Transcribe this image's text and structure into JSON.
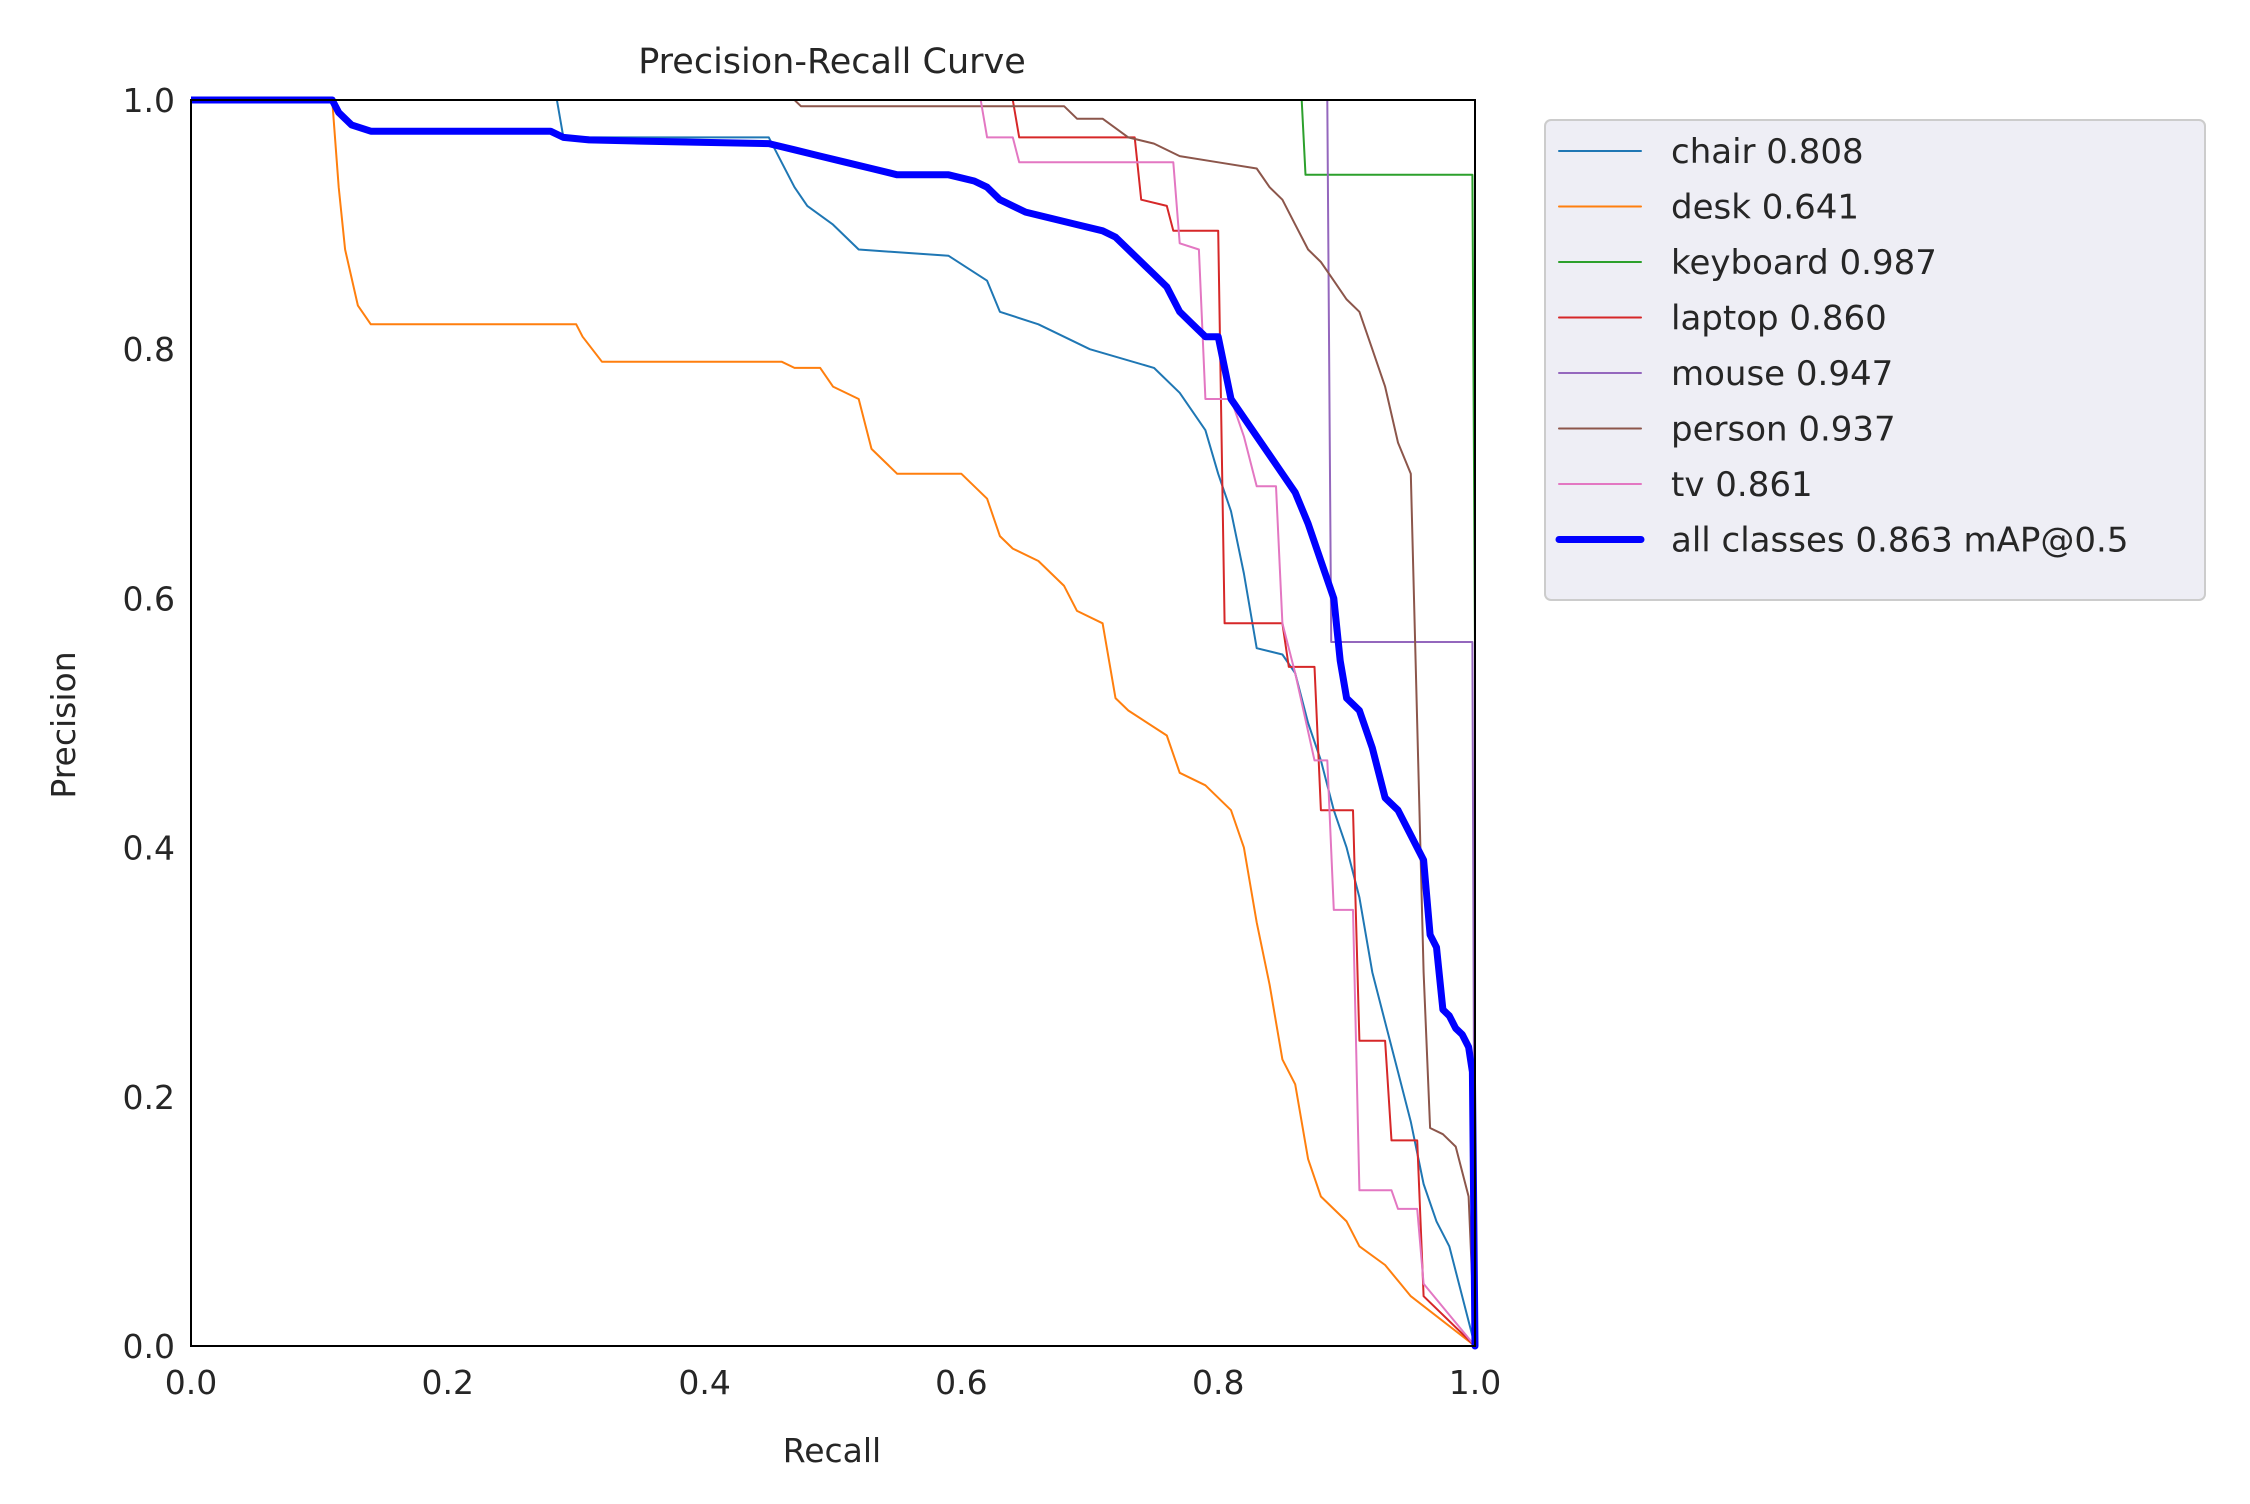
{
  "chart_data": {
    "type": "line",
    "title": "Precision-Recall Curve",
    "xlabel": "Recall",
    "ylabel": "Precision",
    "xlim": [
      0,
      1
    ],
    "ylim": [
      0,
      1
    ],
    "xticks": [
      "0.0",
      "0.2",
      "0.4",
      "0.6",
      "0.8",
      "1.0"
    ],
    "yticks": [
      "0.0",
      "0.2",
      "0.4",
      "0.6",
      "0.8",
      "1.0"
    ],
    "grid": false,
    "legend_position": "outside-top-right",
    "series": [
      {
        "name": "chair",
        "label": "chair 0.808",
        "color": "#1f77b4",
        "width": "thin",
        "points": [
          [
            0,
            1
          ],
          [
            0.285,
            1
          ],
          [
            0.29,
            0.97
          ],
          [
            0.45,
            0.97
          ],
          [
            0.46,
            0.95
          ],
          [
            0.47,
            0.93
          ],
          [
            0.48,
            0.915
          ],
          [
            0.5,
            0.9
          ],
          [
            0.52,
            0.88
          ],
          [
            0.59,
            0.875
          ],
          [
            0.62,
            0.855
          ],
          [
            0.63,
            0.83
          ],
          [
            0.66,
            0.82
          ],
          [
            0.7,
            0.8
          ],
          [
            0.75,
            0.785
          ],
          [
            0.77,
            0.765
          ],
          [
            0.79,
            0.735
          ],
          [
            0.8,
            0.7
          ],
          [
            0.81,
            0.67
          ],
          [
            0.82,
            0.62
          ],
          [
            0.83,
            0.56
          ],
          [
            0.85,
            0.555
          ],
          [
            0.86,
            0.54
          ],
          [
            0.87,
            0.5
          ],
          [
            0.88,
            0.47
          ],
          [
            0.89,
            0.43
          ],
          [
            0.9,
            0.4
          ],
          [
            0.91,
            0.36
          ],
          [
            0.92,
            0.3
          ],
          [
            0.93,
            0.26
          ],
          [
            0.94,
            0.22
          ],
          [
            0.95,
            0.18
          ],
          [
            0.96,
            0.13
          ],
          [
            0.97,
            0.1
          ],
          [
            0.98,
            0.08
          ],
          [
            1.0,
            0
          ]
        ]
      },
      {
        "name": "desk",
        "label": "desk 0.641",
        "color": "#ff7f0e",
        "width": "thin",
        "points": [
          [
            0,
            1
          ],
          [
            0.11,
            1
          ],
          [
            0.115,
            0.93
          ],
          [
            0.12,
            0.88
          ],
          [
            0.13,
            0.835
          ],
          [
            0.14,
            0.82
          ],
          [
            0.3,
            0.82
          ],
          [
            0.305,
            0.81
          ],
          [
            0.32,
            0.79
          ],
          [
            0.46,
            0.79
          ],
          [
            0.47,
            0.785
          ],
          [
            0.49,
            0.785
          ],
          [
            0.5,
            0.77
          ],
          [
            0.52,
            0.76
          ],
          [
            0.53,
            0.72
          ],
          [
            0.55,
            0.7
          ],
          [
            0.6,
            0.7
          ],
          [
            0.62,
            0.68
          ],
          [
            0.63,
            0.65
          ],
          [
            0.64,
            0.64
          ],
          [
            0.66,
            0.63
          ],
          [
            0.68,
            0.61
          ],
          [
            0.69,
            0.59
          ],
          [
            0.71,
            0.58
          ],
          [
            0.72,
            0.52
          ],
          [
            0.73,
            0.51
          ],
          [
            0.76,
            0.49
          ],
          [
            0.77,
            0.46
          ],
          [
            0.79,
            0.45
          ],
          [
            0.81,
            0.43
          ],
          [
            0.82,
            0.4
          ],
          [
            0.83,
            0.34
          ],
          [
            0.84,
            0.29
          ],
          [
            0.85,
            0.23
          ],
          [
            0.86,
            0.21
          ],
          [
            0.87,
            0.15
          ],
          [
            0.88,
            0.12
          ],
          [
            0.9,
            0.1
          ],
          [
            0.91,
            0.08
          ],
          [
            0.93,
            0.065
          ],
          [
            0.95,
            0.04
          ],
          [
            1.0,
            0
          ]
        ]
      },
      {
        "name": "keyboard",
        "label": "keyboard 0.987",
        "color": "#2ca02c",
        "width": "thin",
        "points": [
          [
            0,
            1
          ],
          [
            0.865,
            1
          ],
          [
            0.868,
            0.94
          ],
          [
            0.998,
            0.94
          ],
          [
            1.0,
            0.56
          ],
          [
            1.0,
            0
          ]
        ]
      },
      {
        "name": "laptop",
        "label": "laptop 0.860",
        "color": "#d62728",
        "width": "thin",
        "points": [
          [
            0,
            1
          ],
          [
            0.64,
            1
          ],
          [
            0.645,
            0.97
          ],
          [
            0.735,
            0.97
          ],
          [
            0.74,
            0.92
          ],
          [
            0.76,
            0.915
          ],
          [
            0.765,
            0.895
          ],
          [
            0.8,
            0.895
          ],
          [
            0.805,
            0.58
          ],
          [
            0.85,
            0.58
          ],
          [
            0.855,
            0.545
          ],
          [
            0.875,
            0.545
          ],
          [
            0.88,
            0.43
          ],
          [
            0.905,
            0.43
          ],
          [
            0.91,
            0.245
          ],
          [
            0.93,
            0.245
          ],
          [
            0.935,
            0.165
          ],
          [
            0.955,
            0.165
          ],
          [
            0.96,
            0.04
          ],
          [
            1.0,
            0
          ]
        ]
      },
      {
        "name": "mouse",
        "label": "mouse 0.947",
        "color": "#9467bd",
        "width": "thin",
        "points": [
          [
            0,
            1
          ],
          [
            0.885,
            1
          ],
          [
            0.888,
            0.565
          ],
          [
            0.998,
            0.565
          ],
          [
            1.0,
            0
          ]
        ]
      },
      {
        "name": "person",
        "label": "person 0.937",
        "color": "#8c564b",
        "width": "thin",
        "points": [
          [
            0,
            1
          ],
          [
            0.47,
            1
          ],
          [
            0.475,
            0.995
          ],
          [
            0.68,
            0.995
          ],
          [
            0.69,
            0.985
          ],
          [
            0.71,
            0.985
          ],
          [
            0.73,
            0.97
          ],
          [
            0.75,
            0.965
          ],
          [
            0.77,
            0.955
          ],
          [
            0.8,
            0.95
          ],
          [
            0.83,
            0.945
          ],
          [
            0.84,
            0.93
          ],
          [
            0.85,
            0.92
          ],
          [
            0.86,
            0.9
          ],
          [
            0.87,
            0.88
          ],
          [
            0.88,
            0.87
          ],
          [
            0.89,
            0.855
          ],
          [
            0.9,
            0.84
          ],
          [
            0.91,
            0.83
          ],
          [
            0.92,
            0.8
          ],
          [
            0.93,
            0.77
          ],
          [
            0.94,
            0.725
          ],
          [
            0.95,
            0.7
          ],
          [
            0.955,
            0.5
          ],
          [
            0.96,
            0.3
          ],
          [
            0.965,
            0.175
          ],
          [
            0.975,
            0.17
          ],
          [
            0.985,
            0.16
          ],
          [
            0.995,
            0.12
          ],
          [
            1.0,
            0
          ]
        ]
      },
      {
        "name": "tv",
        "label": "tv 0.861",
        "color": "#e377c2",
        "width": "thin",
        "points": [
          [
            0,
            1
          ],
          [
            0.615,
            1
          ],
          [
            0.62,
            0.97
          ],
          [
            0.64,
            0.97
          ],
          [
            0.645,
            0.95
          ],
          [
            0.765,
            0.95
          ],
          [
            0.77,
            0.885
          ],
          [
            0.785,
            0.88
          ],
          [
            0.79,
            0.76
          ],
          [
            0.81,
            0.76
          ],
          [
            0.82,
            0.73
          ],
          [
            0.83,
            0.69
          ],
          [
            0.845,
            0.69
          ],
          [
            0.85,
            0.58
          ],
          [
            0.86,
            0.54
          ],
          [
            0.875,
            0.47
          ],
          [
            0.885,
            0.47
          ],
          [
            0.89,
            0.35
          ],
          [
            0.905,
            0.35
          ],
          [
            0.91,
            0.125
          ],
          [
            0.935,
            0.125
          ],
          [
            0.94,
            0.11
          ],
          [
            0.955,
            0.11
          ],
          [
            0.96,
            0.05
          ],
          [
            1.0,
            0
          ]
        ]
      },
      {
        "name": "all classes",
        "label": "all classes 0.863 mAP@0.5",
        "color": "#0000ff",
        "width": "thick",
        "points": [
          [
            0,
            1
          ],
          [
            0.11,
            1
          ],
          [
            0.115,
            0.99
          ],
          [
            0.125,
            0.98
          ],
          [
            0.14,
            0.975
          ],
          [
            0.28,
            0.975
          ],
          [
            0.29,
            0.97
          ],
          [
            0.31,
            0.968
          ],
          [
            0.35,
            0.967
          ],
          [
            0.4,
            0.966
          ],
          [
            0.45,
            0.965
          ],
          [
            0.47,
            0.96
          ],
          [
            0.49,
            0.955
          ],
          [
            0.51,
            0.95
          ],
          [
            0.53,
            0.945
          ],
          [
            0.55,
            0.94
          ],
          [
            0.59,
            0.94
          ],
          [
            0.61,
            0.935
          ],
          [
            0.62,
            0.93
          ],
          [
            0.63,
            0.92
          ],
          [
            0.65,
            0.91
          ],
          [
            0.67,
            0.905
          ],
          [
            0.69,
            0.9
          ],
          [
            0.71,
            0.895
          ],
          [
            0.72,
            0.89
          ],
          [
            0.73,
            0.88
          ],
          [
            0.74,
            0.87
          ],
          [
            0.75,
            0.86
          ],
          [
            0.76,
            0.85
          ],
          [
            0.77,
            0.83
          ],
          [
            0.78,
            0.82
          ],
          [
            0.79,
            0.81
          ],
          [
            0.8,
            0.81
          ],
          [
            0.81,
            0.76
          ],
          [
            0.82,
            0.745
          ],
          [
            0.83,
            0.73
          ],
          [
            0.84,
            0.715
          ],
          [
            0.85,
            0.7
          ],
          [
            0.86,
            0.685
          ],
          [
            0.87,
            0.66
          ],
          [
            0.88,
            0.63
          ],
          [
            0.89,
            0.6
          ],
          [
            0.895,
            0.55
          ],
          [
            0.9,
            0.52
          ],
          [
            0.91,
            0.51
          ],
          [
            0.92,
            0.48
          ],
          [
            0.93,
            0.44
          ],
          [
            0.94,
            0.43
          ],
          [
            0.95,
            0.41
          ],
          [
            0.955,
            0.4
          ],
          [
            0.96,
            0.39
          ],
          [
            0.965,
            0.33
          ],
          [
            0.97,
            0.32
          ],
          [
            0.975,
            0.27
          ],
          [
            0.98,
            0.265
          ],
          [
            0.985,
            0.255
          ],
          [
            0.99,
            0.25
          ],
          [
            0.995,
            0.24
          ],
          [
            0.998,
            0.22
          ],
          [
            1.0,
            0
          ]
        ]
      }
    ]
  }
}
